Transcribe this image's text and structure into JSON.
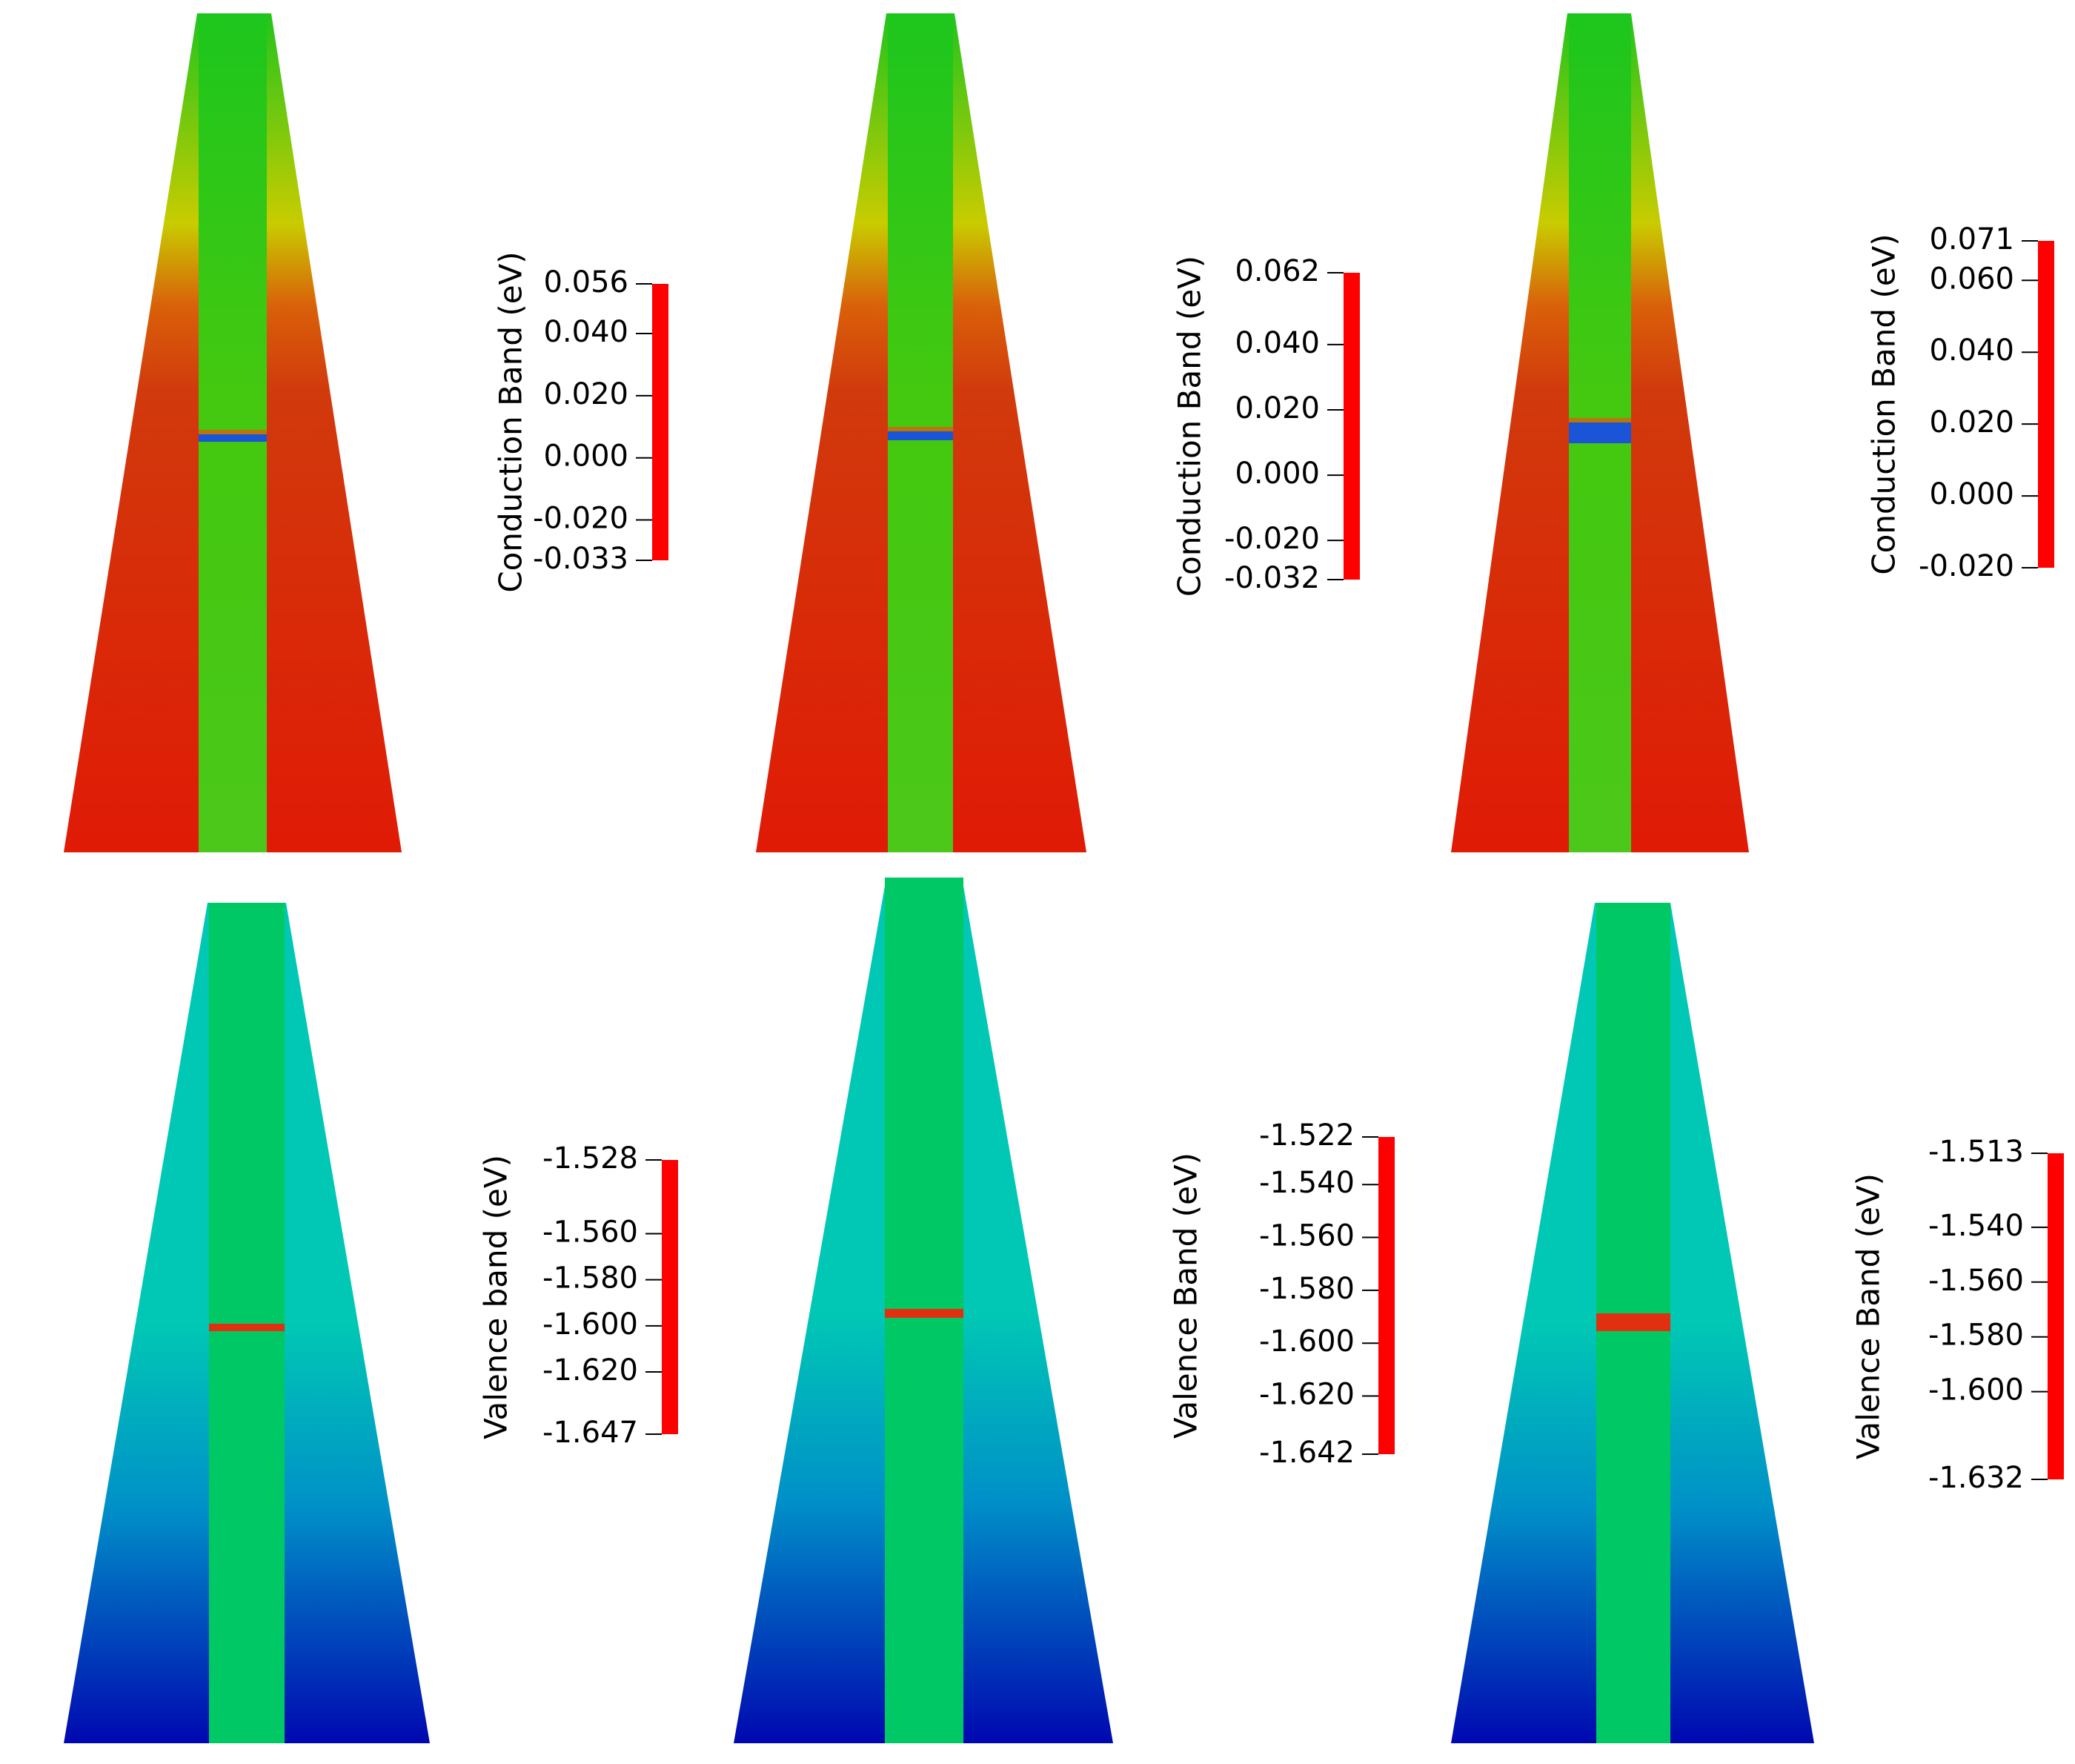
{
  "figure": {
    "panels": [
      {
        "row": "conduction",
        "colorbar": {
          "title": "Conduction Band (eV)",
          "range": [
            -0.033,
            0.056
          ],
          "ticks": [
            "0.056",
            "0.040",
            "0.020",
            "0.000",
            "-0.020",
            "-0.033"
          ],
          "tick_values": [
            0.056,
            0.04,
            0.02,
            0.0,
            -0.02,
            -0.033
          ]
        }
      },
      {
        "row": "conduction",
        "colorbar": {
          "title": "Conduction Band (eV)",
          "range": [
            -0.032,
            0.062
          ],
          "ticks": [
            "0.062",
            "0.040",
            "0.020",
            "0.000",
            "-0.020",
            "-0.032"
          ],
          "tick_values": [
            0.062,
            0.04,
            0.02,
            0.0,
            -0.02,
            -0.032
          ]
        }
      },
      {
        "row": "conduction",
        "colorbar": {
          "title": "Conduction Band (eV)",
          "range": [
            -0.02,
            0.071
          ],
          "ticks": [
            "0.071",
            "0.060",
            "0.040",
            "0.020",
            "0.000",
            "-0.020"
          ],
          "tick_values": [
            0.071,
            0.06,
            0.04,
            0.02,
            0.0,
            -0.02
          ]
        }
      },
      {
        "row": "valence",
        "colorbar": {
          "title": "Valence band (eV)",
          "range": [
            -1.647,
            -1.528
          ],
          "ticks": [
            "-1.528",
            "-1.560",
            "-1.580",
            "-1.600",
            "-1.620",
            "-1.647"
          ],
          "tick_values": [
            -1.528,
            -1.56,
            -1.58,
            -1.6,
            -1.62,
            -1.647
          ]
        }
      },
      {
        "row": "valence",
        "colorbar": {
          "title": "Valence Band (eV)",
          "range": [
            -1.642,
            -1.522
          ],
          "ticks": [
            "-1.522",
            "-1.540",
            "-1.560",
            "-1.580",
            "-1.600",
            "-1.620",
            "-1.642"
          ],
          "tick_values": [
            -1.522,
            -1.54,
            -1.56,
            -1.58,
            -1.6,
            -1.62,
            -1.642
          ]
        }
      },
      {
        "row": "valence",
        "colorbar": {
          "title": "Valence Band (eV)",
          "range": [
            -1.632,
            -1.513
          ],
          "ticks": [
            "-1.513",
            "-1.540",
            "-1.560",
            "-1.580",
            "-1.600",
            "-1.632"
          ],
          "tick_values": [
            -1.513,
            -1.54,
            -1.56,
            -1.58,
            -1.6,
            -1.632
          ]
        }
      }
    ]
  },
  "colors": {
    "rainbow": [
      "#0000ff",
      "#00ffff",
      "#00ff00",
      "#ffff00",
      "#ff0000"
    ],
    "cb_red": "#d13a0c",
    "cb_deep_red": "#e01a05",
    "cb_orange": "#d9600a",
    "cb_yellow": "#c8cc00",
    "cb_green": "#22c41c",
    "wire_green": "#3fca1a",
    "qd_blue": "#1a55d8",
    "vb_cyan": "#00c8b4",
    "vb_blue": "#0030c8",
    "vb_deep_blue": "#0008b0",
    "vb_wire": "#00c864",
    "qd_red": "#e03010"
  }
}
